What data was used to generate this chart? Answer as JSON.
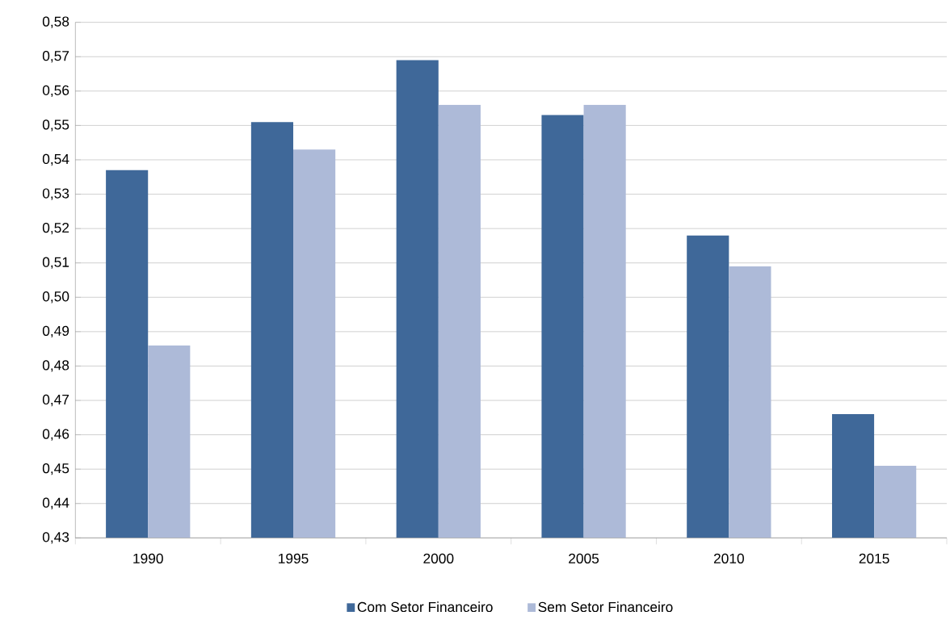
{
  "chart_data": {
    "type": "bar",
    "categories": [
      "1990",
      "1995",
      "2000",
      "2005",
      "2010",
      "2015"
    ],
    "series": [
      {
        "name": "Com Setor Financeiro",
        "color": "#3f6899",
        "values": [
          0.537,
          0.551,
          0.569,
          0.553,
          0.518,
          0.466
        ]
      },
      {
        "name": "Sem Setor Financeiro",
        "color": "#adbad8",
        "values": [
          0.486,
          0.543,
          0.556,
          0.556,
          0.509,
          0.451
        ]
      }
    ],
    "ylim": [
      0.43,
      0.58
    ],
    "yticks": [
      {
        "value": 0.43,
        "label": "0,43"
      },
      {
        "value": 0.44,
        "label": "0,44"
      },
      {
        "value": 0.45,
        "label": "0,45"
      },
      {
        "value": 0.46,
        "label": "0,46"
      },
      {
        "value": 0.47,
        "label": "0,47"
      },
      {
        "value": 0.48,
        "label": "0,48"
      },
      {
        "value": 0.49,
        "label": "0,49"
      },
      {
        "value": 0.5,
        "label": "0,50"
      },
      {
        "value": 0.51,
        "label": "0,51"
      },
      {
        "value": 0.52,
        "label": "0,52"
      },
      {
        "value": 0.53,
        "label": "0,53"
      },
      {
        "value": 0.54,
        "label": "0,54"
      },
      {
        "value": 0.55,
        "label": "0,55"
      },
      {
        "value": 0.56,
        "label": "0,56"
      },
      {
        "value": 0.57,
        "label": "0,57"
      },
      {
        "value": 0.58,
        "label": "0,58"
      }
    ],
    "grid": "y",
    "legend": "bottom"
  }
}
